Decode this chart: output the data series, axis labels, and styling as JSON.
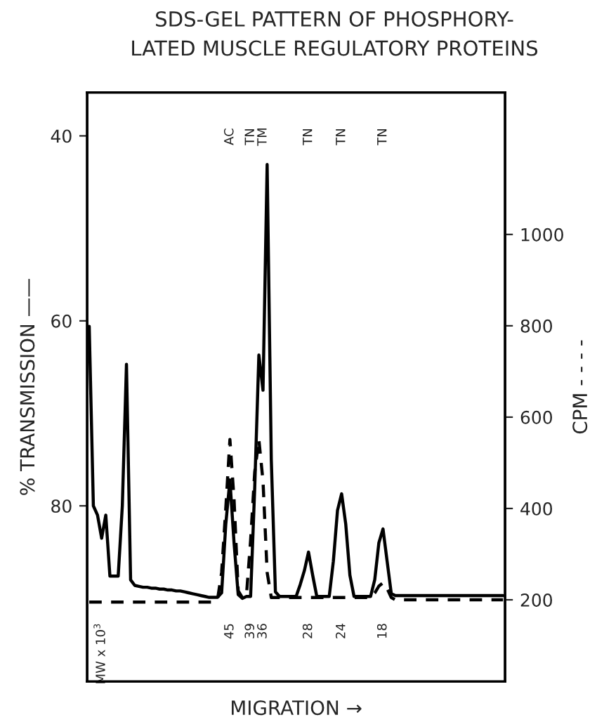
{
  "chart_data": {
    "type": "line",
    "title": "SDS-GEL PATTERN OF PHOSPHORY-\nLATED MUSCLE REGULATORY PROTEINS",
    "xlabel": "MIGRATION →",
    "ylabel": "% TRANSMISSION ——",
    "y2label": "CPM - - - -",
    "categories": [
      null,
      null,
      null,
      "MW x 10$^{3}$",
      null,
      null,
      null,
      null,
      null,
      null,
      null,
      null,
      null,
      null,
      null,
      null,
      null,
      null,
      null,
      null,
      null,
      null,
      null,
      null,
      null,
      null,
      null,
      null,
      null,
      null,
      null,
      null,
      null,
      null,
      "45",
      null,
      null,
      null,
      null,
      "39",
      null,
      null,
      "36",
      null,
      null,
      null,
      null,
      null,
      null,
      null,
      null,
      null,
      null,
      "28",
      null,
      null,
      null,
      null,
      null,
      null,
      null,
      "24",
      null,
      null,
      null,
      null,
      null,
      null,
      null,
      null,
      null,
      "18",
      null,
      null,
      null,
      null,
      null,
      null,
      null,
      null,
      null,
      null,
      null,
      null,
      null,
      null,
      null,
      null,
      null,
      null,
      null,
      null,
      null,
      null,
      null,
      null,
      null,
      null,
      null,
      null,
      null
    ],
    "ylim": [
      99,
      35.3
    ],
    "yticks": [
      40,
      60,
      80
    ],
    "y2lim": [
      21,
      1311
    ],
    "y2ticks": [
      200,
      400,
      600,
      800,
      1000
    ],
    "series": [
      {
        "color": "#000000",
        "line_style": "solid",
        "values": [
          60.6,
          80,
          81.0,
          83.5,
          81.0,
          87.6,
          87.6,
          87.6,
          80,
          64.7,
          88.0,
          88.6,
          88.7,
          88.8,
          88.8,
          88.9,
          88.9,
          89.0,
          89.0,
          89.1,
          89.1,
          89.2,
          89.2,
          89.3,
          89.4,
          89.5,
          89.6,
          89.7,
          89.8,
          89.9,
          89.9,
          89.9,
          89.4,
          82,
          77.2,
          84,
          89.6,
          90,
          89.8,
          89.8,
          78,
          63.7,
          67.5,
          43.1,
          75,
          89.3,
          89.8,
          89.8,
          89.8,
          89.8,
          89.8,
          88.5,
          87,
          85.0,
          87.5,
          89.8,
          89.8,
          89.8,
          89.8,
          86,
          80.5,
          78.7,
          82,
          87.5,
          89.8,
          89.8,
          89.8,
          89.8,
          89.8,
          88,
          84,
          82.5,
          86,
          89.5,
          89.7,
          89.7,
          89.7,
          89.7,
          89.7,
          89.7,
          89.7,
          89.7,
          89.7,
          89.7,
          89.7,
          89.7,
          89.7,
          89.7,
          89.7,
          89.7,
          89.7,
          89.7,
          89.7,
          89.7,
          89.7,
          89.7,
          89.7,
          89.7,
          89.7,
          89.7,
          89.7
        ]
      },
      {
        "color": "#000000",
        "line_style": "dashed",
        "axis": "y2",
        "values": [
          195,
          195,
          195,
          195,
          195,
          195,
          195,
          195,
          195,
          195,
          195,
          195,
          195,
          195,
          195,
          195,
          195,
          195,
          195,
          195,
          195,
          195,
          195,
          195,
          195,
          195,
          195,
          195,
          195,
          195,
          195,
          200,
          260,
          400,
          551,
          420,
          220,
          205,
          210,
          330,
          480,
          551,
          460,
          260,
          205,
          205,
          205,
          205,
          205,
          205,
          205,
          205,
          205,
          205,
          205,
          205,
          205,
          205,
          205,
          205,
          205,
          205,
          205,
          205,
          205,
          205,
          205,
          205,
          205,
          215,
          230,
          237,
          225,
          205,
          200,
          200,
          200,
          200,
          200,
          200,
          200,
          200,
          200,
          200,
          200,
          200,
          200,
          200,
          200,
          200,
          200,
          200,
          200,
          200,
          200,
          200,
          200,
          200,
          200,
          200,
          200
        ]
      }
    ],
    "annotations": [
      "AC",
      "TN",
      "TM",
      "TN",
      "TN",
      "TN"
    ]
  }
}
